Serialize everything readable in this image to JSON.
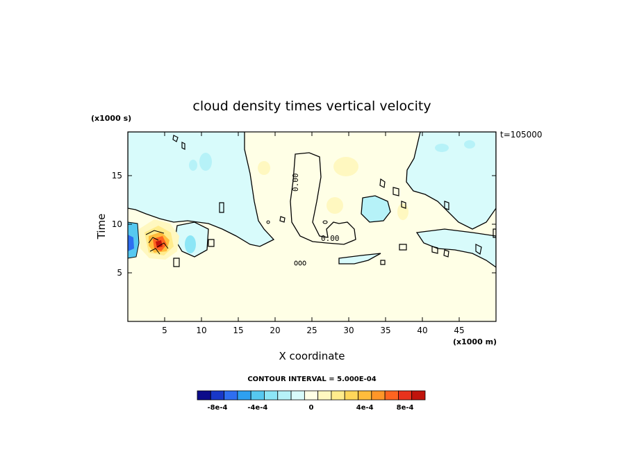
{
  "chart_data": {
    "type": "heatmap",
    "title": "cloud density times vertical velocity",
    "xlabel": "X coordinate",
    "ylabel": "Time",
    "x_unit_label": "(x1000 m)",
    "y_unit_label": "(x1000 s)",
    "time_stamp": "t=105000",
    "xlim": [
      0,
      50
    ],
    "ylim": [
      0,
      19.5
    ],
    "x_ticks": [
      5,
      10,
      15,
      20,
      25,
      30,
      35,
      40,
      45
    ],
    "y_ticks": [
      5,
      10,
      15
    ],
    "contour_interval_text": "CONTOUR INTERVAL = 5.000E-04",
    "contour_labels": [
      "0.00",
      "0.00",
      "0.00"
    ],
    "colorbar": {
      "labels": [
        "-8e-4",
        "-4e-4",
        "0",
        "4e-4",
        "8e-4"
      ],
      "colors": [
        "#0c0c8a",
        "#1838c8",
        "#2e6ef0",
        "#2ea0f0",
        "#56c8f0",
        "#8ce6f6",
        "#b6f2f8",
        "#d8fbfb",
        "#ffffe6",
        "#fff8c0",
        "#ffec8c",
        "#ffd75a",
        "#ffbc3c",
        "#ff9628",
        "#ff6420",
        "#e8321c",
        "#c0140c"
      ]
    }
  }
}
